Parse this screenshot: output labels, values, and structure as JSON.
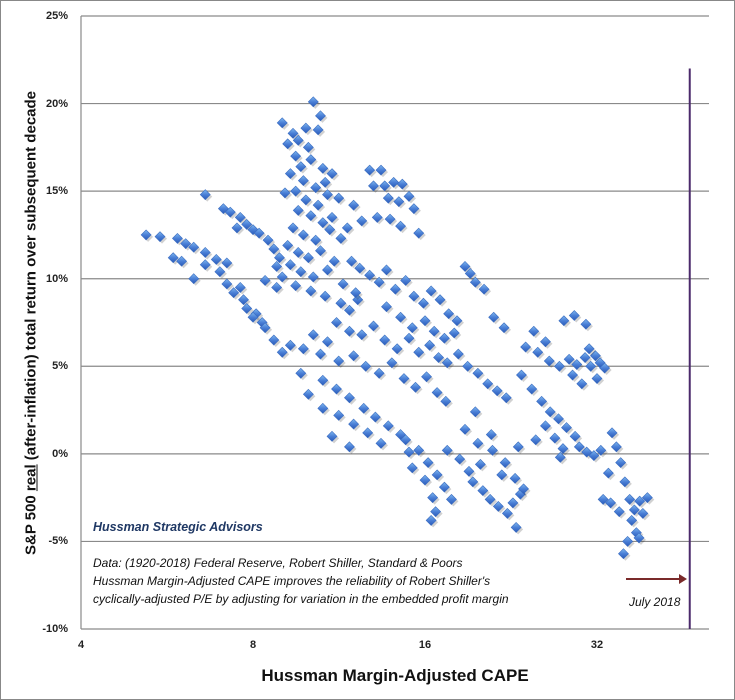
{
  "chart_data": {
    "type": "scatter",
    "title": "",
    "xlabel": "Hussman Margin-Adjusted CAPE",
    "ylabel_parts": [
      "S&P 500 ",
      "real",
      " (after-inflation) total return over subsequent decade"
    ],
    "x_scale": "log2",
    "xlim": [
      4,
      50
    ],
    "ylim": [
      -10,
      25
    ],
    "x_ticks": [
      "4",
      "8",
      "16",
      "32"
    ],
    "x_tick_values": [
      4,
      8,
      16,
      32
    ],
    "y_ticks": [
      "25%",
      "20%",
      "15%",
      "10%",
      "5%",
      "0%",
      "-5%",
      "-10%"
    ],
    "y_tick_values": [
      25,
      20,
      15,
      10,
      5,
      0,
      -5,
      -10
    ],
    "grid": "horizontal",
    "marker_color": "#4a7fd6",
    "current_marker": {
      "label": "July 2018",
      "x": 46.5,
      "color": "#4b2a6b",
      "arrow_color": "#7a2a2a"
    },
    "annotations": {
      "brand": "Hussman Strategic Advisors",
      "lines": [
        "Data: (1920-2018)  Federal Reserve, Robert Shiller,  Standard & Poors",
        "Hussman Margin-Adjusted CAPE improves the reliability of Robert Shiller's",
        "cyclically-adjusted P/E by adjusting for variation in the embedded profit margin"
      ]
    },
    "points": [
      [
        5.2,
        12.5
      ],
      [
        5.5,
        12.4
      ],
      [
        5.9,
        12.3
      ],
      [
        6.1,
        12.0
      ],
      [
        6.3,
        11.8
      ],
      [
        6.6,
        11.5
      ],
      [
        5.8,
        11.2
      ],
      [
        6.0,
        11.0
      ],
      [
        6.6,
        10.8
      ],
      [
        7.0,
        10.4
      ],
      [
        6.3,
        10.0
      ],
      [
        6.9,
        11.1
      ],
      [
        7.2,
        10.9
      ],
      [
        6.6,
        14.8
      ],
      [
        7.1,
        14.0
      ],
      [
        7.3,
        13.8
      ],
      [
        7.6,
        13.5
      ],
      [
        7.8,
        13.1
      ],
      [
        8.0,
        12.8
      ],
      [
        7.5,
        12.9
      ],
      [
        8.2,
        12.6
      ],
      [
        8.5,
        12.2
      ],
      [
        8.7,
        11.7
      ],
      [
        8.9,
        11.2
      ],
      [
        7.2,
        9.7
      ],
      [
        7.4,
        9.2
      ],
      [
        7.7,
        8.8
      ],
      [
        7.8,
        8.3
      ],
      [
        8.1,
        8.0
      ],
      [
        8.3,
        7.5
      ],
      [
        8.0,
        7.8
      ],
      [
        7.6,
        9.5
      ],
      [
        8.4,
        9.9
      ],
      [
        8.8,
        9.5
      ],
      [
        10.2,
        20.1
      ],
      [
        9.0,
        18.9
      ],
      [
        9.4,
        18.3
      ],
      [
        9.6,
        17.9
      ],
      [
        9.9,
        18.6
      ],
      [
        10.0,
        17.5
      ],
      [
        10.5,
        19.3
      ],
      [
        10.4,
        18.5
      ],
      [
        9.2,
        17.7
      ],
      [
        9.5,
        17.0
      ],
      [
        9.7,
        16.4
      ],
      [
        10.1,
        16.8
      ],
      [
        10.6,
        16.3
      ],
      [
        9.3,
        16.0
      ],
      [
        9.8,
        15.6
      ],
      [
        10.3,
        15.2
      ],
      [
        10.7,
        15.5
      ],
      [
        11.0,
        16.0
      ],
      [
        9.5,
        15.0
      ],
      [
        9.9,
        14.5
      ],
      [
        10.4,
        14.2
      ],
      [
        10.8,
        14.8
      ],
      [
        11.3,
        14.6
      ],
      [
        9.1,
        14.9
      ],
      [
        9.6,
        13.9
      ],
      [
        10.1,
        13.6
      ],
      [
        10.6,
        13.2
      ],
      [
        11.0,
        13.5
      ],
      [
        9.4,
        12.9
      ],
      [
        9.8,
        12.5
      ],
      [
        10.3,
        12.2
      ],
      [
        10.9,
        12.8
      ],
      [
        11.4,
        12.3
      ],
      [
        9.2,
        11.9
      ],
      [
        9.6,
        11.5
      ],
      [
        10.0,
        11.2
      ],
      [
        10.5,
        11.6
      ],
      [
        11.1,
        11.0
      ],
      [
        9.3,
        10.8
      ],
      [
        9.7,
        10.4
      ],
      [
        10.2,
        10.1
      ],
      [
        10.8,
        10.5
      ],
      [
        9.0,
        10.1
      ],
      [
        8.8,
        10.7
      ],
      [
        9.5,
        9.6
      ],
      [
        10.1,
        9.3
      ],
      [
        10.7,
        9.0
      ],
      [
        11.5,
        9.7
      ],
      [
        11.8,
        8.2
      ],
      [
        12.2,
        8.8
      ],
      [
        12.8,
        16.2
      ],
      [
        13.4,
        16.2
      ],
      [
        13.0,
        15.3
      ],
      [
        13.6,
        15.3
      ],
      [
        14.1,
        15.5
      ],
      [
        14.6,
        15.4
      ],
      [
        13.8,
        14.6
      ],
      [
        14.4,
        14.4
      ],
      [
        15.0,
        14.7
      ],
      [
        15.3,
        14.0
      ],
      [
        13.2,
        13.5
      ],
      [
        13.9,
        13.4
      ],
      [
        14.5,
        13.0
      ],
      [
        12.4,
        13.3
      ],
      [
        15.6,
        12.6
      ],
      [
        12.0,
        14.2
      ],
      [
        11.7,
        12.9
      ],
      [
        11.9,
        11.0
      ],
      [
        12.3,
        10.6
      ],
      [
        12.8,
        10.2
      ],
      [
        13.3,
        9.8
      ],
      [
        13.7,
        10.5
      ],
      [
        14.2,
        9.4
      ],
      [
        14.8,
        9.9
      ],
      [
        15.3,
        9.0
      ],
      [
        15.9,
        8.6
      ],
      [
        16.4,
        9.3
      ],
      [
        17.0,
        8.8
      ],
      [
        17.6,
        8.0
      ],
      [
        18.2,
        7.6
      ],
      [
        18.8,
        10.7
      ],
      [
        19.2,
        10.3
      ],
      [
        19.6,
        9.8
      ],
      [
        20.3,
        9.4
      ],
      [
        21.1,
        7.8
      ],
      [
        22.0,
        7.2
      ],
      [
        11.2,
        7.5
      ],
      [
        11.8,
        7.0
      ],
      [
        12.4,
        6.8
      ],
      [
        13.0,
        7.3
      ],
      [
        13.6,
        6.5
      ],
      [
        14.3,
        6.0
      ],
      [
        15.0,
        6.6
      ],
      [
        15.6,
        5.8
      ],
      [
        16.3,
        6.2
      ],
      [
        16.9,
        5.5
      ],
      [
        17.5,
        5.2
      ],
      [
        18.3,
        5.7
      ],
      [
        19.0,
        5.0
      ],
      [
        19.8,
        4.6
      ],
      [
        20.6,
        4.0
      ],
      [
        21.4,
        3.6
      ],
      [
        22.2,
        3.2
      ],
      [
        10.2,
        6.8
      ],
      [
        10.8,
        6.4
      ],
      [
        9.8,
        6.0
      ],
      [
        10.5,
        5.7
      ],
      [
        11.3,
        5.3
      ],
      [
        12.0,
        5.6
      ],
      [
        12.6,
        5.0
      ],
      [
        13.3,
        4.6
      ],
      [
        14.0,
        5.2
      ],
      [
        14.7,
        4.3
      ],
      [
        15.4,
        3.8
      ],
      [
        16.1,
        4.4
      ],
      [
        16.8,
        3.5
      ],
      [
        17.4,
        3.0
      ],
      [
        9.3,
        6.2
      ],
      [
        9.0,
        5.8
      ],
      [
        8.7,
        6.5
      ],
      [
        8.4,
        7.2
      ],
      [
        13.7,
        8.4
      ],
      [
        14.5,
        7.8
      ],
      [
        15.2,
        7.2
      ],
      [
        16.0,
        7.6
      ],
      [
        16.6,
        7.0
      ],
      [
        17.3,
        6.6
      ],
      [
        18.0,
        6.9
      ],
      [
        12.1,
        9.2
      ],
      [
        11.4,
        8.6
      ],
      [
        10.6,
        4.2
      ],
      [
        11.2,
        3.7
      ],
      [
        11.8,
        3.2
      ],
      [
        12.5,
        2.6
      ],
      [
        13.1,
        2.1
      ],
      [
        13.8,
        1.6
      ],
      [
        14.5,
        1.1
      ],
      [
        10.0,
        3.4
      ],
      [
        10.6,
        2.6
      ],
      [
        11.3,
        2.2
      ],
      [
        12.0,
        1.7
      ],
      [
        12.7,
        1.2
      ],
      [
        13.4,
        0.6
      ],
      [
        9.7,
        4.6
      ],
      [
        11.0,
        1.0
      ],
      [
        11.8,
        0.4
      ],
      [
        14.8,
        0.8
      ],
      [
        15.6,
        0.2
      ],
      [
        16.2,
        -0.5
      ],
      [
        16.8,
        -1.2
      ],
      [
        17.3,
        -1.9
      ],
      [
        17.8,
        -2.6
      ],
      [
        16.0,
        -1.5
      ],
      [
        16.5,
        -2.5
      ],
      [
        16.7,
        -3.3
      ],
      [
        16.4,
        -3.8
      ],
      [
        15.2,
        -0.8
      ],
      [
        15.0,
        0.1
      ],
      [
        17.5,
        0.2
      ],
      [
        18.4,
        -0.3
      ],
      [
        19.1,
        -1.0
      ],
      [
        19.4,
        -1.6
      ],
      [
        20.2,
        -2.1
      ],
      [
        20.8,
        -2.6
      ],
      [
        21.5,
        -3.0
      ],
      [
        22.3,
        -3.4
      ],
      [
        23.1,
        -4.2
      ],
      [
        20.0,
        -0.6
      ],
      [
        21.0,
        0.2
      ],
      [
        22.1,
        -0.5
      ],
      [
        23.0,
        -1.4
      ],
      [
        23.5,
        -2.3
      ],
      [
        21.8,
        -1.2
      ],
      [
        22.8,
        -2.8
      ],
      [
        19.8,
        0.6
      ],
      [
        20.9,
        1.1
      ],
      [
        23.3,
        0.4
      ],
      [
        23.8,
        -2.0
      ],
      [
        18.8,
        1.4
      ],
      [
        19.6,
        2.4
      ],
      [
        24.0,
        6.1
      ],
      [
        25.2,
        5.8
      ],
      [
        26.4,
        5.3
      ],
      [
        27.5,
        5.0
      ],
      [
        28.6,
        5.4
      ],
      [
        29.5,
        5.1
      ],
      [
        30.5,
        5.5
      ],
      [
        31.2,
        5.0
      ],
      [
        31.8,
        5.6
      ],
      [
        32.4,
        5.2
      ],
      [
        33.0,
        4.9
      ],
      [
        32.0,
        4.3
      ],
      [
        31.0,
        6.0
      ],
      [
        29.0,
        4.5
      ],
      [
        30.1,
        4.0
      ],
      [
        28.0,
        7.6
      ],
      [
        29.2,
        7.9
      ],
      [
        30.6,
        7.4
      ],
      [
        26.0,
        6.4
      ],
      [
        24.8,
        7.0
      ],
      [
        23.6,
        4.5
      ],
      [
        24.6,
        3.7
      ],
      [
        25.6,
        3.0
      ],
      [
        26.5,
        2.4
      ],
      [
        27.4,
        2.0
      ],
      [
        28.3,
        1.5
      ],
      [
        29.3,
        1.0
      ],
      [
        26.0,
        1.6
      ],
      [
        27.0,
        0.9
      ],
      [
        27.9,
        0.3
      ],
      [
        29.8,
        0.4
      ],
      [
        30.7,
        0.1
      ],
      [
        31.6,
        -0.1
      ],
      [
        32.5,
        0.2
      ],
      [
        25.0,
        0.8
      ],
      [
        27.6,
        -0.2
      ],
      [
        33.5,
        -1.1
      ],
      [
        32.8,
        -2.6
      ],
      [
        34.0,
        1.2
      ],
      [
        34.6,
        0.4
      ],
      [
        35.2,
        -0.5
      ],
      [
        35.8,
        -1.6
      ],
      [
        36.5,
        -2.6
      ],
      [
        37.2,
        -3.2
      ],
      [
        38.0,
        -2.7
      ],
      [
        36.8,
        -3.8
      ],
      [
        37.5,
        -4.5
      ],
      [
        36.2,
        -5.0
      ],
      [
        35.6,
        -5.7
      ],
      [
        38.5,
        -3.4
      ],
      [
        39.2,
        -2.5
      ],
      [
        33.8,
        -2.8
      ],
      [
        35.0,
        -3.3
      ],
      [
        37.9,
        -4.8
      ]
    ]
  }
}
